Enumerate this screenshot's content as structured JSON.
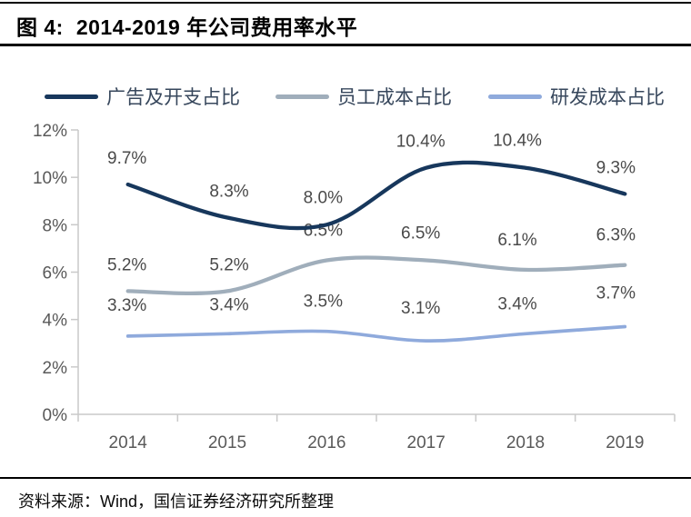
{
  "header": {
    "figure_label": "图 4:",
    "title": "2014-2019 年公司费用率水平"
  },
  "footer": {
    "source": "资料来源：Wind，国信证券经济研究所整理"
  },
  "colors": {
    "rule": "#000000",
    "axis_line": "#C9C9C9",
    "axis_text": "#595959",
    "data_label_text": "#4A4A4A",
    "legend_text": "#37475C"
  },
  "chart_data": {
    "type": "line",
    "smooth": true,
    "grid": false,
    "legend_position": "top",
    "title": "图 4: 2014-2019 年公司费用率水平",
    "xlabel": "",
    "ylabel": "",
    "ylim": [
      0,
      12
    ],
    "y_ticks": [
      "0%",
      "2%",
      "4%",
      "6%",
      "8%",
      "10%",
      "12%"
    ],
    "categories": [
      "2014",
      "2015",
      "2016",
      "2017",
      "2018",
      "2019"
    ],
    "series": [
      {
        "name": "广告及开支占比",
        "color": "#17375C",
        "values": [
          9.7,
          8.3,
          8.0,
          10.4,
          10.4,
          9.3
        ],
        "labels": [
          "9.7%",
          "8.3%",
          "8.0%",
          "10.4%",
          "10.4%",
          "9.3%"
        ]
      },
      {
        "name": "员工成本占比",
        "color": "#A0AEBB",
        "values": [
          5.2,
          5.2,
          6.5,
          6.5,
          6.1,
          6.3
        ],
        "labels": [
          "5.2%",
          "5.2%",
          "6.5%",
          "6.5%",
          "6.1%",
          "6.3%"
        ]
      },
      {
        "name": "研发成本占比",
        "color": "#8FAADC",
        "values": [
          3.3,
          3.4,
          3.5,
          3.1,
          3.4,
          3.7
        ],
        "labels": [
          "3.3%",
          "3.4%",
          "3.5%",
          "3.1%",
          "3.4%",
          "3.7%"
        ]
      }
    ]
  }
}
